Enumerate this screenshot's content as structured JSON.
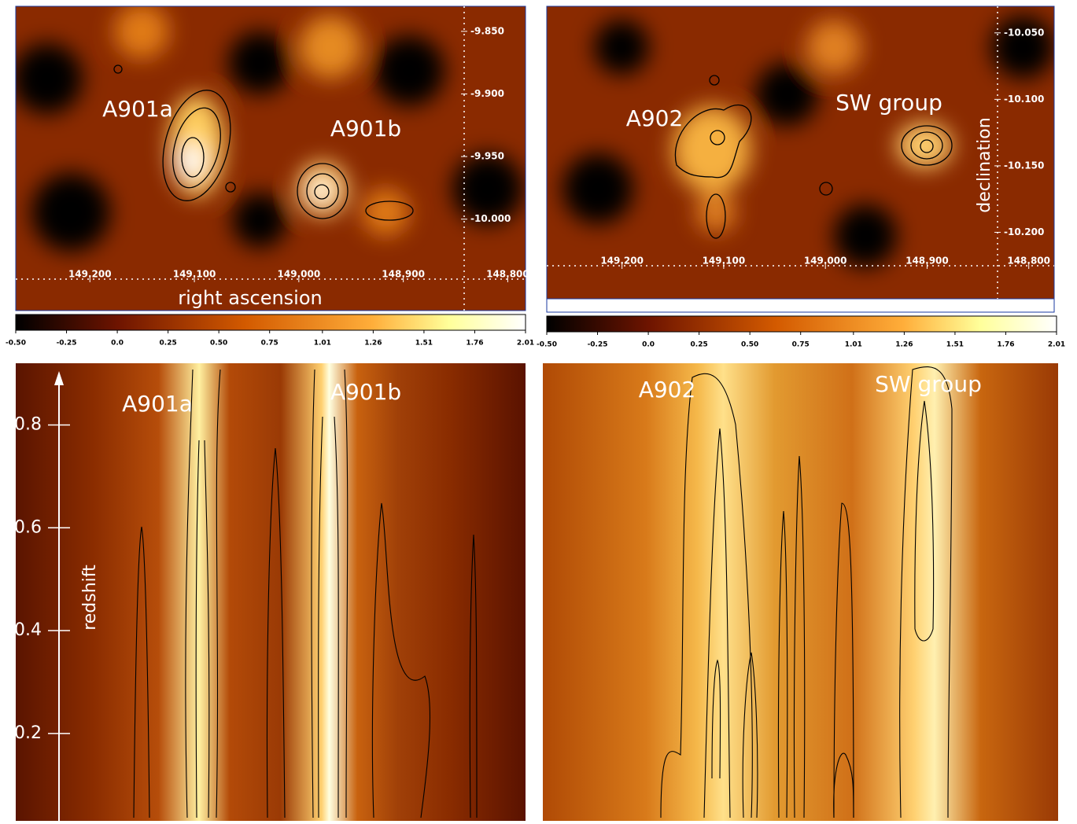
{
  "chart_data": [
    {
      "type": "heatmap",
      "xlabel": "right ascension",
      "annotations": [
        "A901a",
        "A901b"
      ],
      "xlim": [
        149.271,
        148.783
      ],
      "xticks": [
        {
          "value": 149.2,
          "label": "149.200"
        },
        {
          "value": 149.1,
          "label": "149.100"
        },
        {
          "value": 149.0,
          "label": "149.000"
        },
        {
          "value": 148.9,
          "label": "148.900"
        },
        {
          "value": 148.8,
          "label": "148.800"
        }
      ],
      "ylim": [
        -10.073,
        -9.83
      ],
      "yticks": [
        {
          "value": -9.85,
          "label": "-9.850"
        },
        {
          "value": -9.9,
          "label": "-9.900"
        },
        {
          "value": -9.95,
          "label": "-9.950"
        },
        {
          "value": -10.0,
          "label": "-10.000"
        }
      ],
      "clim": [
        -0.5,
        2.01
      ],
      "cticks": [
        {
          "value": -0.5,
          "label": "-0.50"
        },
        -0.25,
        {
          "value": 0,
          "label": "0.0"
        },
        0.25,
        {
          "value": 0.5,
          "label": "0.50"
        },
        0.75,
        1.01,
        1.26,
        1.51,
        1.76,
        2.01
      ]
    },
    {
      "type": "heatmap",
      "ylabel": "declination",
      "annotations": [
        "A902",
        "SW group"
      ],
      "xlim": [
        149.274,
        148.775
      ],
      "xticks": [
        {
          "value": 149.2,
          "label": "149.200"
        },
        {
          "value": 149.1,
          "label": "149.100"
        },
        {
          "value": 149.0,
          "label": "149.000"
        },
        {
          "value": 148.9,
          "label": "148.900"
        },
        {
          "value": 148.8,
          "label": "148.800"
        }
      ],
      "ylim": [
        -10.25,
        -10.03
      ],
      "yticks": [
        {
          "value": -10.05,
          "label": "-10.050"
        },
        {
          "value": -10.1,
          "label": "-10.100"
        },
        {
          "value": -10.15,
          "label": "-10.150"
        },
        {
          "value": -10.2,
          "label": "-10.200"
        }
      ],
      "clim": [
        -0.5,
        2.01
      ],
      "cticks": [
        {
          "value": -0.5,
          "label": "-0.50"
        },
        -0.25,
        {
          "value": 0,
          "label": "0.0"
        },
        0.25,
        {
          "value": 0.5,
          "label": "0.50"
        },
        0.75,
        1.01,
        1.26,
        1.51,
        1.76,
        2.01
      ]
    },
    {
      "type": "redshift-map",
      "ylabel": "redshift",
      "annotations": [
        "A901a",
        "A901b"
      ],
      "ylim": [
        0.03,
        0.92
      ],
      "yticks": [
        0.2,
        0.4,
        0.6,
        0.8
      ]
    },
    {
      "type": "redshift-map",
      "annotations": [
        "A902",
        "SW group"
      ]
    }
  ]
}
